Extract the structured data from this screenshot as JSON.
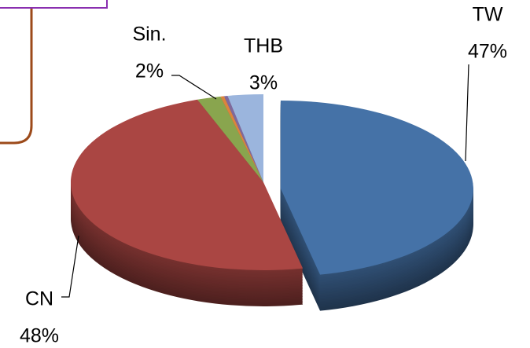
{
  "chart_data": {
    "type": "pie",
    "categories": [
      "TW",
      "CN",
      "Sin.",
      null,
      null,
      "THB"
    ],
    "values": [
      47,
      48,
      2,
      0.3,
      0.3,
      3
    ],
    "value_labels": [
      "47%",
      "48%",
      "2%",
      null,
      null,
      "3%"
    ],
    "colors": [
      "#4572a7",
      "#aa4643",
      "#89a54e",
      "#db843d",
      "#80699b",
      "#9bb5dd"
    ],
    "explode": [
      true,
      false,
      false,
      false,
      false,
      false
    ]
  }
}
